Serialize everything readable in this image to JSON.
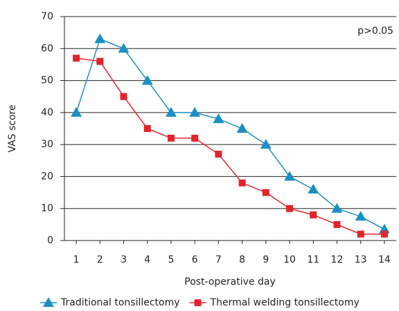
{
  "chart_data": {
    "type": "line",
    "annotation": "p>0.05",
    "x_label": "Post-operative day",
    "y_label": "VAS score",
    "categories": [
      "1",
      "2",
      "3",
      "4",
      "5",
      "6",
      "7",
      "8",
      "9",
      "10",
      "11",
      "12",
      "13",
      "14"
    ],
    "series": [
      {
        "name": "Traditional tonsillectomy",
        "color": "#1b8fc6",
        "marker": "triangle",
        "values": [
          40,
          63,
          60,
          50,
          40,
          40,
          38,
          35,
          30,
          20,
          16,
          10,
          7.5,
          3.5
        ]
      },
      {
        "name": "Thermal welding tonsillectomy",
        "color": "#e3242b",
        "marker": "square",
        "values": [
          57,
          56,
          45,
          35,
          32,
          32,
          27,
          18,
          15,
          10,
          8,
          5,
          2,
          2
        ]
      }
    ],
    "ylim": [
      0,
      70
    ],
    "yticks": [
      0,
      10,
      20,
      30,
      40,
      50,
      60,
      70
    ],
    "grid": true,
    "legend": "bottom"
  }
}
